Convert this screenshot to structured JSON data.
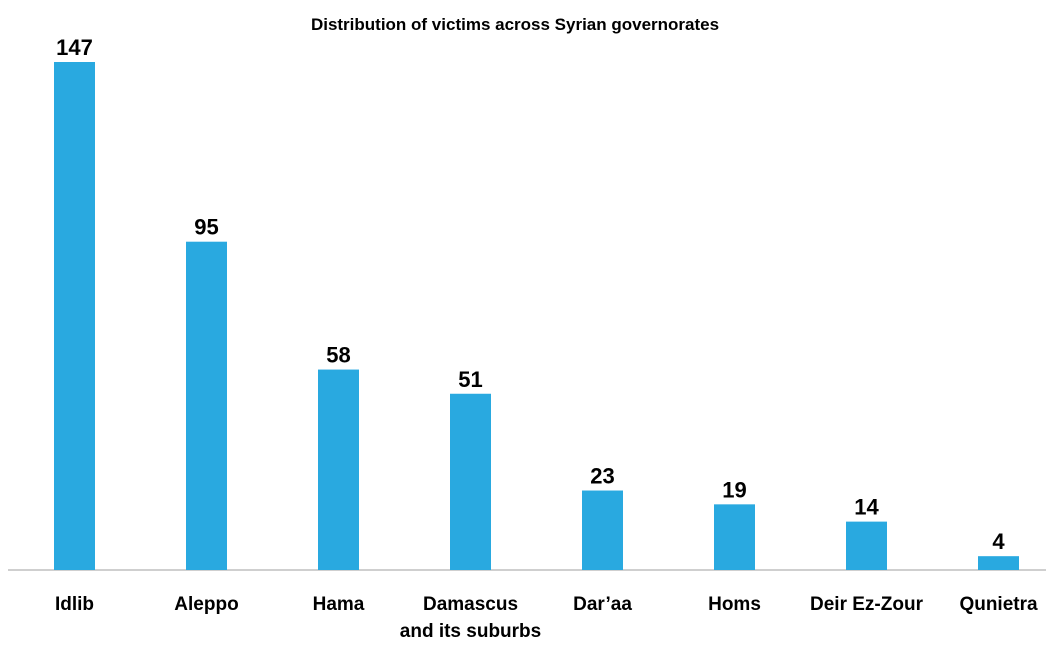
{
  "chart_data": {
    "type": "bar",
    "title": "Distribution of victims across Syrian governorates",
    "xlabel": "",
    "ylabel": "",
    "categories": [
      [
        "Idlib"
      ],
      [
        "Aleppo"
      ],
      [
        "Hama"
      ],
      [
        "Damascus",
        "and its suburbs"
      ],
      [
        "Dar’aa"
      ],
      [
        "Homs"
      ],
      [
        "Deir Ez-Zour"
      ],
      [
        "Qunietra"
      ]
    ],
    "values": [
      147,
      95,
      58,
      51,
      23,
      19,
      14,
      4
    ],
    "ylim": [
      0,
      147
    ],
    "grid": false,
    "legend": "none",
    "data_labels": true,
    "bar_color": "#29a9e0",
    "axis_color": "#bfbfbf"
  }
}
